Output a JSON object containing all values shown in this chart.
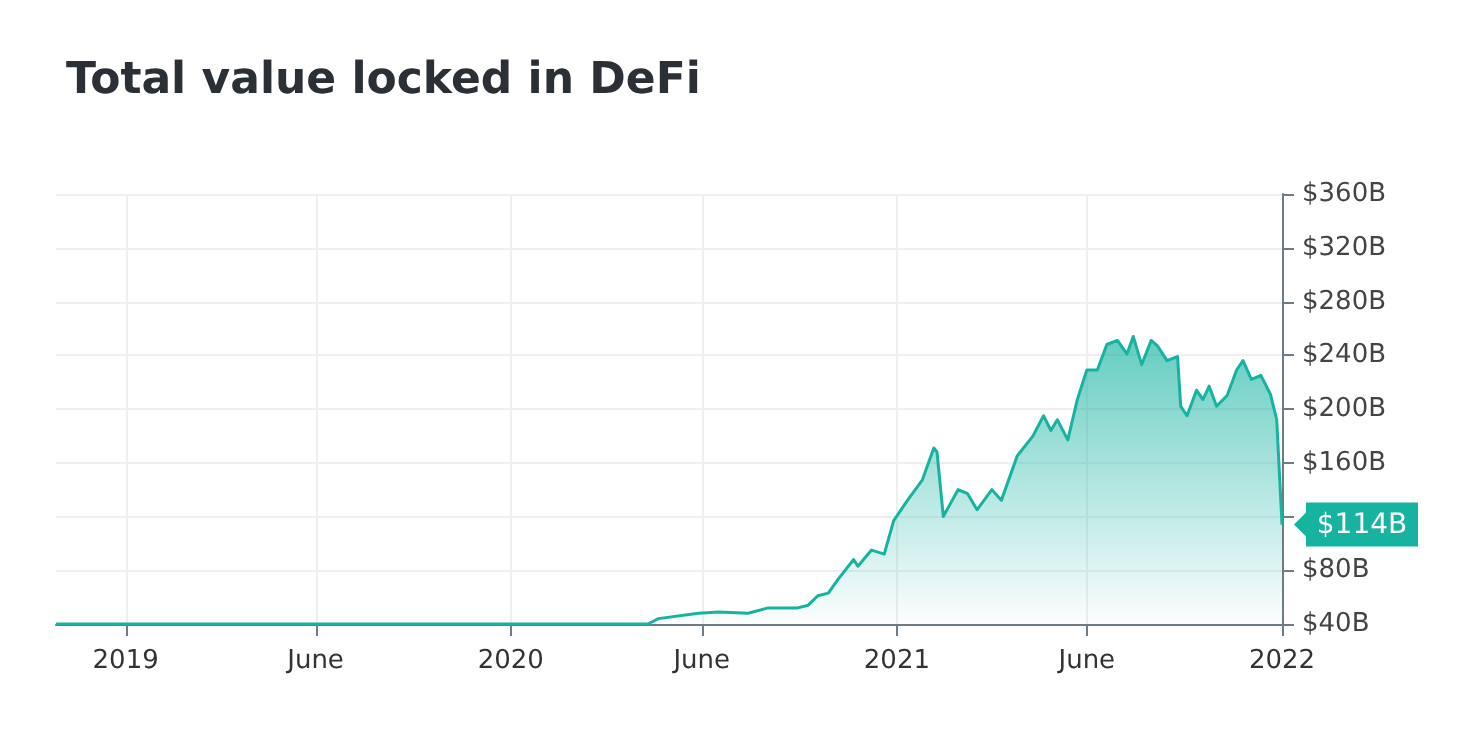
{
  "chart_data": {
    "type": "area",
    "title": "Total value locked in DeFi",
    "x": [
      "2018-10-27",
      "2020-05-10",
      "2020-05-20",
      "2020-06-27",
      "2020-07-16",
      "2020-08-13",
      "2020-09-01",
      "2020-09-29",
      "2020-10-09",
      "2020-10-18",
      "2020-10-28",
      "2020-11-06",
      "2020-11-21",
      "2020-11-25",
      "2020-12-08",
      "2020-12-20",
      "2020-12-29",
      "2021-01-11",
      "2021-01-25",
      "2021-02-05",
      "2021-02-08",
      "2021-02-14",
      "2021-02-28",
      "2021-03-09",
      "2021-03-18",
      "2021-04-01",
      "2021-04-10",
      "2021-04-25",
      "2021-05-10",
      "2021-05-20",
      "2021-05-27",
      "2021-06-02",
      "2021-06-12",
      "2021-06-21",
      "2021-06-30",
      "2021-07-10",
      "2021-07-19",
      "2021-07-29",
      "2021-08-07",
      "2021-08-13",
      "2021-08-21",
      "2021-08-30",
      "2021-09-05",
      "2021-09-14",
      "2021-09-24",
      "2021-09-27",
      "2021-10-03",
      "2021-10-12",
      "2021-10-18",
      "2021-10-24",
      "2021-10-31",
      "2021-11-10",
      "2021-11-19",
      "2021-11-25",
      "2021-12-03",
      "2021-12-12",
      "2021-12-21",
      "2021-12-27",
      "2022-01-01"
    ],
    "series": [
      {
        "color": "#16b3a1",
        "values": [
          40,
          40,
          44,
          48,
          49,
          48,
          52,
          52,
          54,
          61,
          63,
          73,
          88,
          83,
          95,
          92,
          117,
          132,
          147,
          171,
          168,
          120,
          140,
          137,
          125,
          140,
          132,
          165,
          180,
          195,
          184,
          192,
          177,
          207,
          229,
          229,
          248,
          251,
          241,
          254,
          233,
          251,
          247,
          236,
          239,
          202,
          195,
          214,
          207,
          217,
          202,
          210,
          229,
          236,
          222,
          225,
          211,
          192,
          114
        ]
      }
    ],
    "xlim": [
      "2018-10-27",
      "2022-01-01"
    ],
    "xticks": [
      {
        "value": "2019-01-01",
        "label": "2019"
      },
      {
        "value": "2019-06-30",
        "label": "June"
      },
      {
        "value": "2020-01-01",
        "label": "2020"
      },
      {
        "value": "2020-06-30",
        "label": "June"
      },
      {
        "value": "2021-01-01",
        "label": "2021"
      },
      {
        "value": "2021-06-30",
        "label": "June"
      },
      {
        "value": "2022-01-01",
        "label": "2022"
      }
    ],
    "ylim": [
      40,
      360
    ],
    "yticks": [
      {
        "value": 40,
        "label": "$40B"
      },
      {
        "value": 80,
        "label": "$80B"
      },
      {
        "value": 120,
        "label": null
      },
      {
        "value": 160,
        "label": "$160B"
      },
      {
        "value": 200,
        "label": "$200B"
      },
      {
        "value": 240,
        "label": "$240B"
      },
      {
        "value": 280,
        "label": "$280B"
      },
      {
        "value": 320,
        "label": "$320B"
      },
      {
        "value": 360,
        "label": "$360B"
      }
    ],
    "annotations": [
      {
        "text": "$114B",
        "x": "2022-01-01",
        "y": 114
      }
    ],
    "grid": true,
    "marker": "none",
    "line_style": "solid"
  }
}
